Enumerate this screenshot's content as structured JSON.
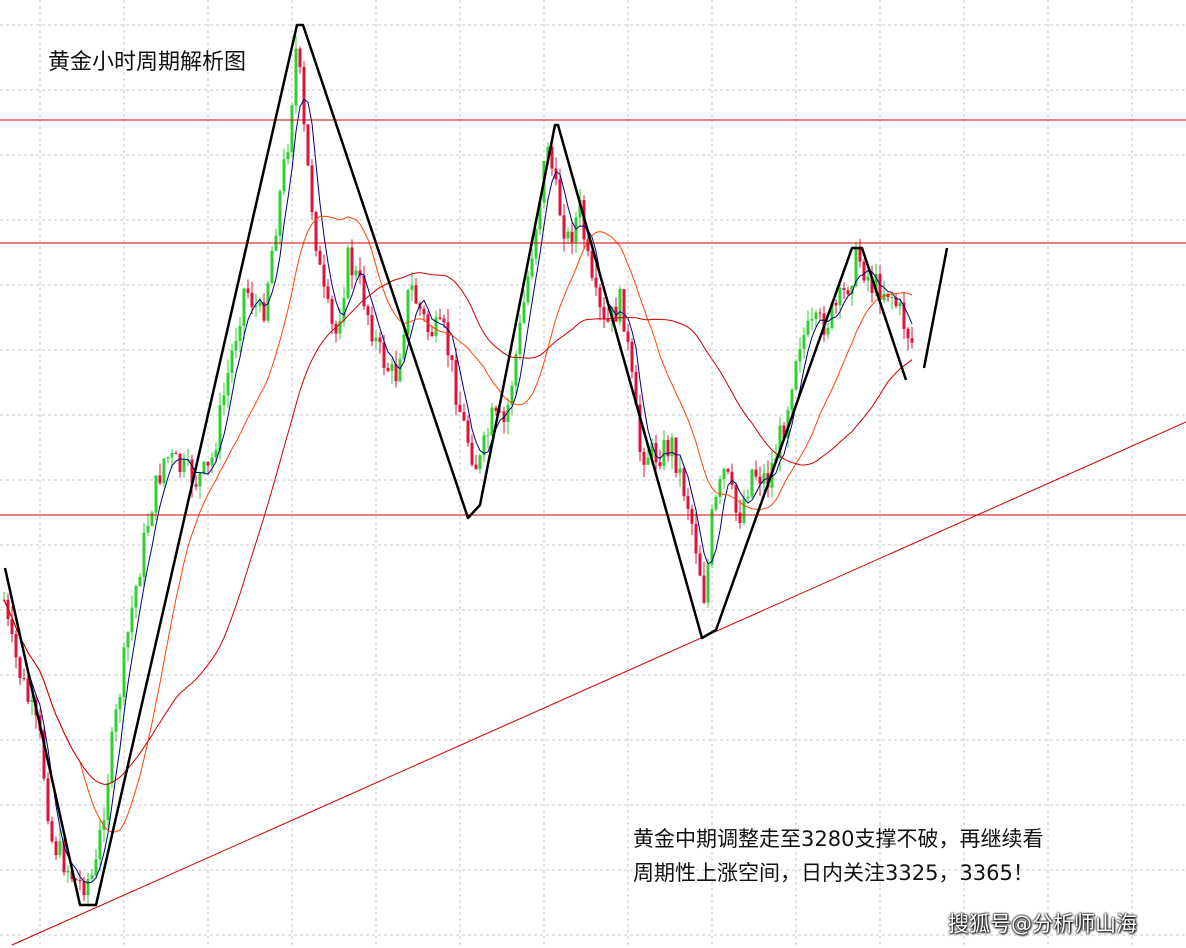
{
  "title": "黄金小时周期解析图",
  "note": {
    "line1": "黄金中期调整走至3280支撑不破，再继续看",
    "line2": "周期性上涨空间，日内关注3325，3365！"
  },
  "watermark": "搜狐号@分析师山海",
  "colors": {
    "background": "#ffffff",
    "grid": "#c8c8c8",
    "bull_candle": "#32cd32",
    "bear_candle": "#dc143c",
    "fast_ma": "#000080",
    "mid_ma": "#ff4500",
    "slow_ma": "#cc0000",
    "resistance_lines": "#cc0000",
    "trend_line": "#cc0000",
    "wave_lines": "#000000"
  },
  "chart_data": {
    "type": "candlestick",
    "title": "黄金小时周期解析图",
    "grid": true,
    "axis_labels_visible": false,
    "horizontal_levels": [
      "resistance-high",
      "resistance-mid",
      "support-low"
    ],
    "trend_line": "rising-support",
    "moving_averages": [
      "fast",
      "mid",
      "slow"
    ],
    "wave_pattern": "zigzag"
  }
}
